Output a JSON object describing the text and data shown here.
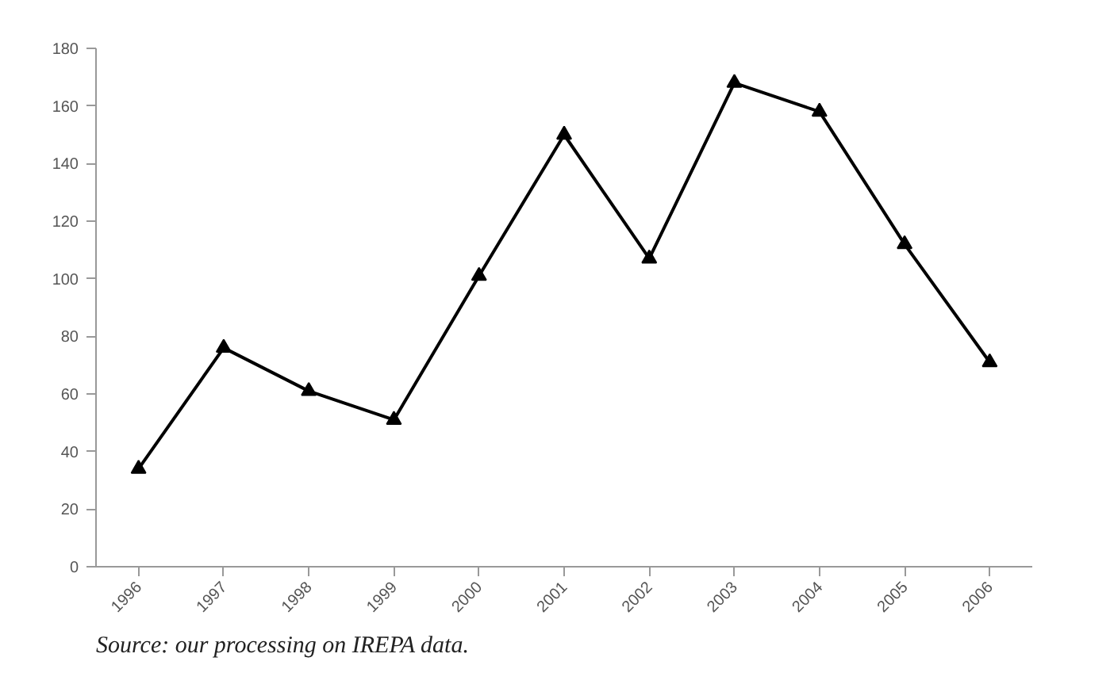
{
  "chart_data": {
    "type": "line",
    "categories": [
      "1996",
      "1997",
      "1998",
      "1999",
      "2000",
      "2001",
      "2002",
      "2003",
      "2004",
      "2005",
      "2006"
    ],
    "series": [
      {
        "color": "#000000",
        "values": [
          34,
          76,
          61,
          51,
          101,
          150,
          107,
          168,
          158,
          112,
          71
        ]
      }
    ],
    "ylim": [
      0,
      180
    ],
    "yticks": [
      0,
      20,
      40,
      60,
      80,
      100,
      120,
      140,
      160,
      180
    ],
    "marker": "triangle",
    "line_style": "solid",
    "annotations": [
      "Source: our processing on IREPA data."
    ]
  }
}
